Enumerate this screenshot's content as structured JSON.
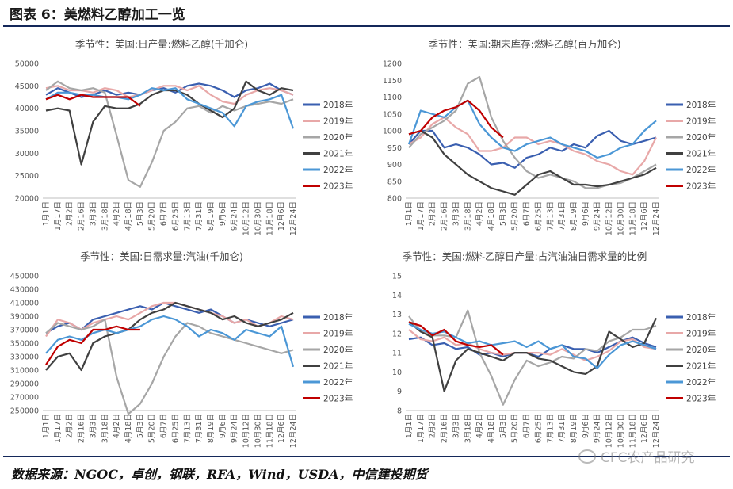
{
  "figure": {
    "title": "图表 6：美燃料乙醇加工一览",
    "source": "数据来源：NGOC，卓创，钢联，RFA，Wind，USDA，中信建投期货",
    "watermark": "CFC农产品研究"
  },
  "colors": {
    "2018年": "#3a5fb0",
    "2019年": "#e8a8a8",
    "2020年": "#a6a6a6",
    "2021年": "#404040",
    "2022年": "#4b97d6",
    "2023年": "#c00000"
  },
  "chart_data": [
    {
      "type": "line",
      "title": "季节性：美国:日产量:燃料乙醇(千加仑)",
      "x_labels": [
        "1月1日",
        "1月17日",
        "2月2日",
        "2月16日",
        "3月3日",
        "3月18日",
        "4月2日",
        "4月18日",
        "5月3日",
        "5月20日",
        "6月7日",
        "6月25日",
        "7月13日",
        "7月31日",
        "8月19日",
        "9月6日",
        "9月24日",
        "10月12日",
        "10月30日",
        "11月18日",
        "12月6日",
        "12月24日"
      ],
      "ylim": [
        20000,
        50000
      ],
      "yticks": [
        20000,
        25000,
        30000,
        35000,
        40000,
        45000,
        50000
      ],
      "legend": [
        "2018年",
        "2019年",
        "2020年",
        "2021年",
        "2022年",
        "2023年"
      ],
      "series": [
        {
          "name": "2018年",
          "values": [
            43000,
            44500,
            43500,
            42500,
            43000,
            44000,
            43000,
            43500,
            43000,
            44000,
            44500,
            43500,
            45000,
            45500,
            45000,
            44000,
            42500,
            44000,
            44500,
            45500,
            44000,
            43000
          ]
        },
        {
          "name": "2019年",
          "values": [
            44500,
            45000,
            44000,
            44000,
            43500,
            44500,
            44000,
            42500,
            43000,
            44000,
            45000,
            45000,
            44000,
            45000,
            43000,
            41500,
            41000,
            43000,
            44000,
            44500,
            44000,
            43000
          ]
        },
        {
          "name": "2020年",
          "values": [
            44000,
            46000,
            44500,
            44000,
            44500,
            43500,
            34000,
            24000,
            22500,
            28000,
            35000,
            37000,
            40000,
            40500,
            39000,
            40500,
            39500,
            40500,
            41000,
            41500,
            41000,
            42000
          ]
        },
        {
          "name": "2021年",
          "values": [
            39500,
            40000,
            39500,
            27500,
            37000,
            40500,
            40000,
            40000,
            41000,
            43000,
            44000,
            44000,
            43000,
            41000,
            39500,
            38000,
            40000,
            46000,
            44000,
            43000,
            44500,
            44000
          ]
        },
        {
          "name": "2022年",
          "values": [
            42000,
            43500,
            43500,
            43000,
            43000,
            42500,
            42500,
            42000,
            43000,
            44500,
            44000,
            44500,
            42000,
            41000,
            40000,
            39000,
            36000,
            40500,
            41500,
            42000,
            43000,
            35500
          ]
        },
        {
          "name": "2023年",
          "values": [
            42000,
            43000,
            42000,
            43000,
            42500,
            42500,
            42500,
            42500,
            40500,
            null,
            null,
            null,
            null,
            null,
            null,
            null,
            null,
            null,
            null,
            null,
            null,
            null
          ]
        }
      ]
    },
    {
      "type": "line",
      "title": "季节性：美国:期末库存:燃料乙醇(百万加仑)",
      "x_labels": [
        "1月1日",
        "1月17日",
        "2月2日",
        "2月16日",
        "3月3日",
        "3月18日",
        "4月2日",
        "4月18日",
        "5月3日",
        "5月20日",
        "6月7日",
        "6月25日",
        "7月13日",
        "7月31日",
        "8月19日",
        "9月6日",
        "9月24日",
        "10月12日",
        "10月30日",
        "11月18日",
        "12月6日",
        "12月24日"
      ],
      "ylim": [
        800,
        1200
      ],
      "yticks": [
        800,
        850,
        900,
        950,
        1000,
        1050,
        1100,
        1150,
        1200
      ],
      "legend": [
        "2018年",
        "2019年",
        "2020年",
        "2021年",
        "2022年",
        "2023年"
      ],
      "series": [
        {
          "name": "2018年",
          "values": [
            960,
            1000,
            1000,
            950,
            960,
            950,
            930,
            900,
            905,
            890,
            920,
            930,
            950,
            940,
            960,
            950,
            985,
            1000,
            970,
            960,
            970,
            980
          ]
        },
        {
          "name": "2019年",
          "values": [
            960,
            980,
            1020,
            1040,
            1010,
            990,
            940,
            940,
            950,
            980,
            980,
            960,
            970,
            960,
            940,
            930,
            910,
            900,
            880,
            870,
            910,
            980
          ]
        },
        {
          "name": "2020年",
          "values": [
            950,
            990,
            1010,
            1030,
            1060,
            1140,
            1160,
            1040,
            970,
            920,
            880,
            860,
            870,
            860,
            850,
            830,
            830,
            840,
            845,
            860,
            880,
            900
          ]
        },
        {
          "name": "2021年",
          "values": [
            990,
            1000,
            980,
            930,
            900,
            870,
            850,
            830,
            820,
            810,
            840,
            870,
            880,
            860,
            840,
            840,
            835,
            840,
            850,
            860,
            870,
            890
          ]
        },
        {
          "name": "2022年",
          "values": [
            960,
            1060,
            1050,
            1040,
            1070,
            1090,
            1020,
            980,
            950,
            940,
            960,
            970,
            980,
            960,
            950,
            940,
            920,
            930,
            950,
            960,
            1000,
            1030
          ]
        },
        {
          "name": "2023年",
          "values": [
            990,
            1000,
            1040,
            1060,
            1070,
            1090,
            1060,
            1010,
            980,
            null,
            null,
            null,
            null,
            null,
            null,
            null,
            null,
            null,
            null,
            null,
            null,
            null
          ]
        }
      ]
    },
    {
      "type": "line",
      "title": "季节性：美国:日需求量:汽油(千加仑)",
      "x_labels": [
        "1月1日",
        "1月17日",
        "2月2日",
        "2月16日",
        "3月3日",
        "3月18日",
        "4月2日",
        "4月18日",
        "5月3日",
        "5月20日",
        "6月7日",
        "6月25日",
        "7月13日",
        "7月31日",
        "8月19日",
        "9月6日",
        "9月24日",
        "10月12日",
        "10月30日",
        "11月18日",
        "12月6日",
        "12月24日"
      ],
      "ylim": [
        250000,
        450000
      ],
      "yticks": [
        250000,
        270000,
        290000,
        310000,
        330000,
        350000,
        370000,
        390000,
        410000,
        430000,
        450000
      ],
      "legend": [
        "2018年",
        "2019年",
        "2020年",
        "2021年",
        "2022年",
        "2023年"
      ],
      "series": [
        {
          "name": "2018年",
          "values": [
            365000,
            375000,
            380000,
            370000,
            385000,
            390000,
            395000,
            400000,
            405000,
            400000,
            410000,
            405000,
            400000,
            395000,
            400000,
            390000,
            380000,
            385000,
            380000,
            375000,
            380000,
            385000
          ]
        },
        {
          "name": "2019年",
          "values": [
            360000,
            385000,
            380000,
            370000,
            380000,
            385000,
            390000,
            385000,
            395000,
            405000,
            410000,
            410000,
            405000,
            400000,
            395000,
            390000,
            380000,
            385000,
            375000,
            380000,
            390000,
            385000
          ]
        },
        {
          "name": "2020年",
          "values": [
            365000,
            380000,
            375000,
            370000,
            375000,
            385000,
            300000,
            245000,
            260000,
            290000,
            330000,
            360000,
            380000,
            375000,
            365000,
            360000,
            355000,
            350000,
            345000,
            340000,
            335000,
            340000
          ]
        },
        {
          "name": "2021年",
          "values": [
            310000,
            330000,
            335000,
            310000,
            350000,
            360000,
            365000,
            370000,
            385000,
            395000,
            400000,
            410000,
            405000,
            400000,
            395000,
            385000,
            390000,
            380000,
            375000,
            380000,
            385000,
            395000
          ]
        },
        {
          "name": "2022年",
          "values": [
            335000,
            355000,
            360000,
            355000,
            365000,
            370000,
            365000,
            370000,
            375000,
            385000,
            390000,
            385000,
            375000,
            360000,
            370000,
            365000,
            355000,
            370000,
            365000,
            360000,
            375000,
            315000
          ]
        },
        {
          "name": "2023年",
          "values": [
            318000,
            345000,
            355000,
            350000,
            370000,
            370000,
            375000,
            370000,
            370000,
            null,
            null,
            null,
            null,
            null,
            null,
            null,
            null,
            null,
            null,
            null,
            null,
            null
          ]
        }
      ]
    },
    {
      "type": "line",
      "title": "季节性：美国:燃料乙醇日产量:占汽油油日需求量的比例",
      "x_labels": [
        "1月1日",
        "1月17日",
        "2月2日",
        "2月16日",
        "3月3日",
        "3月18日",
        "4月2日",
        "4月18日",
        "5月3日",
        "5月20日",
        "6月7日",
        "6月25日",
        "7月13日",
        "7月31日",
        "8月19日",
        "9月6日",
        "9月24日",
        "10月12日",
        "10月30日",
        "11月18日",
        "12月6日",
        "12月24日"
      ],
      "ylim": [
        8,
        15
      ],
      "yticks": [
        8,
        9,
        10,
        11,
        12,
        13,
        14,
        15
      ],
      "legend": [
        "2018年",
        "2019年",
        "2020年",
        "2021年",
        "2022年",
        "2023年"
      ],
      "series": [
        {
          "name": "2018年",
          "values": [
            11.7,
            11.8,
            11.4,
            11.5,
            11.2,
            11.3,
            10.9,
            11.0,
            10.8,
            11.0,
            11.0,
            10.8,
            11.2,
            11.4,
            11.2,
            11.2,
            11.0,
            11.3,
            11.6,
            11.8,
            11.5,
            11.3
          ]
        },
        {
          "name": "2019年",
          "values": [
            12.2,
            11.7,
            11.6,
            11.8,
            11.4,
            11.5,
            11.2,
            11.0,
            10.9,
            11.0,
            11.0,
            11.0,
            10.9,
            11.2,
            10.9,
            10.6,
            10.8,
            11.1,
            11.6,
            11.7,
            11.3,
            11.2
          ]
        },
        {
          "name": "2020年",
          "values": [
            12.9,
            12.1,
            11.9,
            11.9,
            11.8,
            13.2,
            11.0,
            9.8,
            8.3,
            9.6,
            10.6,
            10.3,
            10.5,
            10.8,
            10.7,
            11.2,
            11.1,
            11.6,
            11.8,
            12.2,
            12.2,
            12.4
          ]
        },
        {
          "name": "2021年",
          "values": [
            12.6,
            12.1,
            11.8,
            9.0,
            10.6,
            11.2,
            11.0,
            10.8,
            10.6,
            11.0,
            11.0,
            10.7,
            10.6,
            10.3,
            10.0,
            9.9,
            10.3,
            12.1,
            11.7,
            11.3,
            11.5,
            12.8
          ]
        },
        {
          "name": "2022年",
          "values": [
            12.5,
            12.2,
            12.0,
            12.1,
            11.8,
            11.5,
            11.6,
            11.4,
            11.5,
            11.6,
            11.3,
            11.6,
            11.2,
            11.4,
            10.8,
            10.7,
            10.2,
            10.9,
            11.4,
            11.6,
            11.4,
            11.2
          ]
        },
        {
          "name": "2023年",
          "values": [
            12.6,
            12.4,
            11.9,
            12.2,
            11.6,
            11.4,
            11.3,
            11.4,
            10.9,
            null,
            null,
            null,
            null,
            null,
            null,
            null,
            null,
            null,
            null,
            null,
            null,
            null
          ]
        }
      ]
    }
  ]
}
